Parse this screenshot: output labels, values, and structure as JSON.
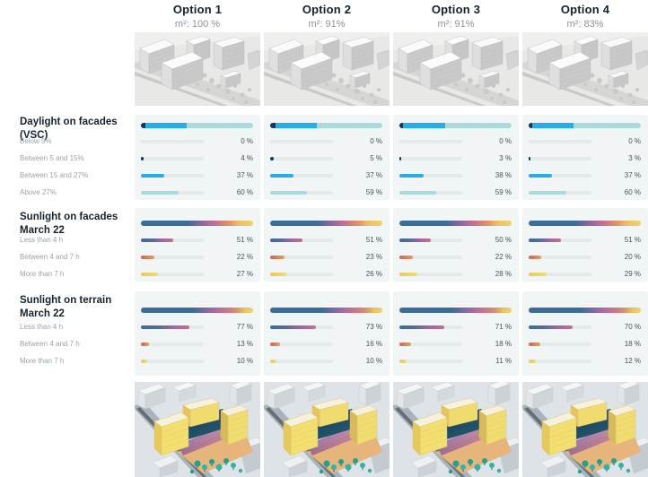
{
  "options": [
    {
      "name": "Option 1",
      "area": "m²: 100 %"
    },
    {
      "name": "Option 2",
      "area": "m²: 91%"
    },
    {
      "name": "Option 3",
      "area": "m²: 91%"
    },
    {
      "name": "Option 4",
      "area": "m²: 83%"
    }
  ],
  "sections": [
    {
      "id": "daylight-facades",
      "title_lines": [
        "Daylight on facades (VSC)",
        ""
      ],
      "unit": "%",
      "rows": [
        {
          "label": "Below 5%",
          "color": "#0d3050"
        },
        {
          "label": "Between 5 and 15%",
          "color": "#0f3a5f"
        },
        {
          "label": "Between 15 and 27%",
          "color": "#27aee4"
        },
        {
          "label": "Above 27%",
          "color": "#a9dbdc"
        }
      ],
      "values_by_option": [
        [
          0,
          4,
          37,
          60
        ],
        [
          0,
          5,
          37,
          59
        ],
        [
          0,
          3,
          38,
          59
        ],
        [
          0,
          3,
          37,
          60
        ]
      ]
    },
    {
      "id": "sunlight-facades-march-22",
      "title_lines": [
        "Sunlight on facades",
        "March 22"
      ],
      "unit": "%",
      "scale_gradient": [
        [
          "#3b6d98",
          0
        ],
        [
          "#3b6d98",
          42
        ],
        [
          "#90689d",
          55
        ],
        [
          "#c4708f",
          66
        ],
        [
          "#dd9166",
          78
        ],
        [
          "#e9c465",
          88
        ],
        [
          "#ecd468",
          100
        ]
      ],
      "rows": [
        {
          "label": "Less than 4 h",
          "fill": [
            "#3b6d98",
            "#4f6d98",
            "#a0689b",
            "#c56f8e"
          ]
        },
        {
          "label": "Between 4 and 7 h",
          "fill": [
            "#c9684f",
            "#e0a25c"
          ]
        },
        {
          "label": "More than 7 h",
          "fill": [
            "#e9ca57",
            "#efdc74"
          ]
        }
      ],
      "values_by_option": [
        [
          51,
          22,
          27
        ],
        [
          51,
          23,
          26
        ],
        [
          50,
          22,
          28
        ],
        [
          51,
          20,
          29
        ]
      ]
    },
    {
      "id": "sunlight-terrain-march-22",
      "title_lines": [
        "Sunlight on terrain",
        "March 22"
      ],
      "unit": "%",
      "scale_gradient": [
        [
          "#3b6d98",
          0
        ],
        [
          "#3b6d98",
          46
        ],
        [
          "#8d68a0",
          60
        ],
        [
          "#c06f92",
          72
        ],
        [
          "#d9886f",
          84
        ],
        [
          "#e9c465",
          93
        ],
        [
          "#ecd468",
          100
        ]
      ],
      "rows": [
        {
          "label": "Less than 4 h",
          "fill": [
            "#3b6d98",
            "#4f6d98",
            "#a0689b",
            "#c56f8e"
          ]
        },
        {
          "label": "Between 4 and 7 h",
          "fill": [
            "#c9684f",
            "#e0a25c"
          ]
        },
        {
          "label": "More than 7 h",
          "fill": [
            "#e9ca57",
            "#efdc74"
          ]
        }
      ],
      "values_by_option": [
        [
          77,
          13,
          10
        ],
        [
          73,
          16,
          10
        ],
        [
          71,
          18,
          11
        ],
        [
          70,
          18,
          12
        ]
      ]
    }
  ],
  "colors": {
    "panel_bg": "#f2f5f5",
    "track": "#e4eaea",
    "accent_blue": "#27aee4",
    "pale_teal": "#a9dbdc",
    "navy": "#0f3a5f",
    "steel_blue": "#3b6d98",
    "purple": "#a0689b",
    "pink": "#c56f8e",
    "orange": "#e0a25c",
    "yellow": "#ecd468",
    "value_text": "#46525a",
    "label_text": "#99a3a9"
  }
}
